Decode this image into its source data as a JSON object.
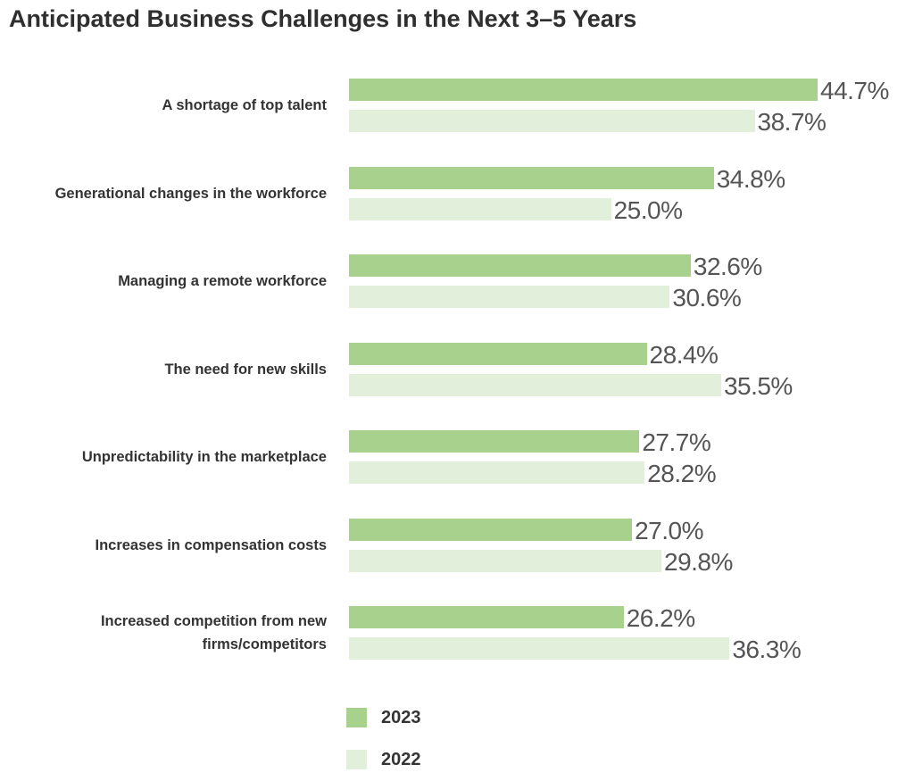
{
  "chart_data": {
    "type": "bar",
    "orientation": "horizontal",
    "title": "Anticipated Business Challenges in the Next 3–5 Years",
    "categories": [
      "A shortage of top talent",
      "Generational changes in the workforce",
      "Managing a remote workforce",
      "The need for new skills",
      "Unpredictability in the marketplace",
      "Increases in compensation costs",
      "Increased competition from new firms/competitors"
    ],
    "series": [
      {
        "name": "2023",
        "color": "#a9d18e",
        "values": [
          44.7,
          34.8,
          32.6,
          28.4,
          27.7,
          27.0,
          26.2
        ],
        "value_labels": [
          "44.7%",
          "34.8%",
          "32.6%",
          "28.4%",
          "27.7%",
          "27.0%",
          "26.2%"
        ]
      },
      {
        "name": "2022",
        "color": "#e2efda",
        "values": [
          38.7,
          25.0,
          30.6,
          35.5,
          28.2,
          29.8,
          36.3
        ],
        "value_labels": [
          "38.7%",
          "25.0%",
          "30.6%",
          "35.5%",
          "28.2%",
          "29.8%",
          "36.3%"
        ]
      }
    ]
  }
}
